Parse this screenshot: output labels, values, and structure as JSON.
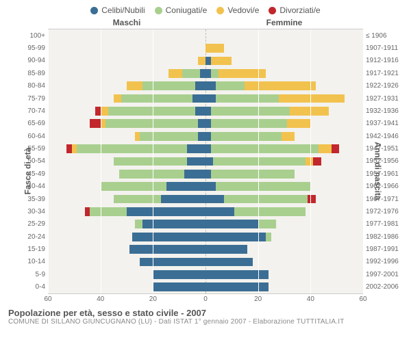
{
  "legend": [
    {
      "label": "Celibi/Nubili",
      "color": "#3b6e94"
    },
    {
      "label": "Coniugati/e",
      "color": "#a9cf8f"
    },
    {
      "label": "Vedovi/e",
      "color": "#f2c24e"
    },
    {
      "label": "Divorziati/e",
      "color": "#c1272d"
    }
  ],
  "headers": {
    "male": "Maschi",
    "female": "Femmine"
  },
  "axis_titles": {
    "left": "Fasce di età",
    "right": "Anni di nascita"
  },
  "xmax": 60,
  "xticks": [
    60,
    40,
    20,
    0,
    20,
    40,
    60
  ],
  "colors": {
    "single": "#3b6e94",
    "married": "#a9cf8f",
    "widowed": "#f2c24e",
    "divorced": "#c1272d",
    "plot_bg": "#f3f2ee",
    "grid": "#ffffff"
  },
  "title": "Popolazione per età, sesso e stato civile - 2007",
  "subtitle": "COMUNE DI SILLANO GIUNCUGNANO (LU) - Dati ISTAT 1° gennaio 2007 - Elaborazione TUTTITALIA.IT",
  "rows": [
    {
      "age": "100+",
      "birth": "≤ 1906",
      "m": {
        "single": 0,
        "married": 0,
        "widowed": 0,
        "divorced": 0
      },
      "f": {
        "single": 0,
        "married": 0,
        "widowed": 0,
        "divorced": 0
      }
    },
    {
      "age": "95-99",
      "birth": "1907-1911",
      "m": {
        "single": 0,
        "married": 0,
        "widowed": 0,
        "divorced": 0
      },
      "f": {
        "single": 0,
        "married": 0,
        "widowed": 7,
        "divorced": 0
      }
    },
    {
      "age": "90-94",
      "birth": "1912-1916",
      "m": {
        "single": 0,
        "married": 0,
        "widowed": 3,
        "divorced": 0
      },
      "f": {
        "single": 2,
        "married": 0,
        "widowed": 8,
        "divorced": 0
      }
    },
    {
      "age": "85-89",
      "birth": "1917-1921",
      "m": {
        "single": 2,
        "married": 7,
        "widowed": 5,
        "divorced": 0
      },
      "f": {
        "single": 2,
        "married": 3,
        "widowed": 18,
        "divorced": 0
      }
    },
    {
      "age": "80-84",
      "birth": "1922-1926",
      "m": {
        "single": 4,
        "married": 20,
        "widowed": 6,
        "divorced": 0
      },
      "f": {
        "single": 4,
        "married": 11,
        "widowed": 27,
        "divorced": 0
      }
    },
    {
      "age": "75-79",
      "birth": "1927-1931",
      "m": {
        "single": 5,
        "married": 27,
        "widowed": 3,
        "divorced": 0
      },
      "f": {
        "single": 4,
        "married": 24,
        "widowed": 25,
        "divorced": 0
      }
    },
    {
      "age": "70-74",
      "birth": "1932-1936",
      "m": {
        "single": 4,
        "married": 33,
        "widowed": 3,
        "divorced": 2
      },
      "f": {
        "single": 2,
        "married": 30,
        "widowed": 15,
        "divorced": 0
      }
    },
    {
      "age": "65-69",
      "birth": "1937-1941",
      "m": {
        "single": 3,
        "married": 35,
        "widowed": 2,
        "divorced": 4
      },
      "f": {
        "single": 2,
        "married": 29,
        "widowed": 9,
        "divorced": 0
      }
    },
    {
      "age": "60-64",
      "birth": "1942-1946",
      "m": {
        "single": 3,
        "married": 22,
        "widowed": 2,
        "divorced": 0
      },
      "f": {
        "single": 2,
        "married": 27,
        "widowed": 5,
        "divorced": 0
      }
    },
    {
      "age": "55-59",
      "birth": "1947-1951",
      "m": {
        "single": 7,
        "married": 42,
        "widowed": 2,
        "divorced": 2
      },
      "f": {
        "single": 2,
        "married": 41,
        "widowed": 5,
        "divorced": 3
      }
    },
    {
      "age": "50-54",
      "birth": "1952-1956",
      "m": {
        "single": 7,
        "married": 28,
        "widowed": 0,
        "divorced": 0
      },
      "f": {
        "single": 3,
        "married": 35,
        "widowed": 3,
        "divorced": 3
      }
    },
    {
      "age": "45-49",
      "birth": "1957-1961",
      "m": {
        "single": 8,
        "married": 25,
        "widowed": 0,
        "divorced": 0
      },
      "f": {
        "single": 2,
        "married": 32,
        "widowed": 0,
        "divorced": 0
      }
    },
    {
      "age": "40-44",
      "birth": "1962-1966",
      "m": {
        "single": 15,
        "married": 25,
        "widowed": 0,
        "divorced": 0
      },
      "f": {
        "single": 4,
        "married": 36,
        "widowed": 0,
        "divorced": 0
      }
    },
    {
      "age": "35-39",
      "birth": "1967-1971",
      "m": {
        "single": 17,
        "married": 18,
        "widowed": 0,
        "divorced": 0
      },
      "f": {
        "single": 7,
        "married": 32,
        "widowed": 0,
        "divorced": 3
      }
    },
    {
      "age": "30-34",
      "birth": "1972-1976",
      "m": {
        "single": 30,
        "married": 14,
        "widowed": 0,
        "divorced": 2
      },
      "f": {
        "single": 11,
        "married": 27,
        "widowed": 0,
        "divorced": 0
      }
    },
    {
      "age": "25-29",
      "birth": "1977-1981",
      "m": {
        "single": 24,
        "married": 3,
        "widowed": 0,
        "divorced": 0
      },
      "f": {
        "single": 20,
        "married": 7,
        "widowed": 0,
        "divorced": 0
      }
    },
    {
      "age": "20-24",
      "birth": "1982-1986",
      "m": {
        "single": 28,
        "married": 0,
        "widowed": 0,
        "divorced": 0
      },
      "f": {
        "single": 23,
        "married": 2,
        "widowed": 0,
        "divorced": 0
      }
    },
    {
      "age": "15-19",
      "birth": "1987-1991",
      "m": {
        "single": 29,
        "married": 0,
        "widowed": 0,
        "divorced": 0
      },
      "f": {
        "single": 16,
        "married": 0,
        "widowed": 0,
        "divorced": 0
      }
    },
    {
      "age": "10-14",
      "birth": "1992-1996",
      "m": {
        "single": 25,
        "married": 0,
        "widowed": 0,
        "divorced": 0
      },
      "f": {
        "single": 18,
        "married": 0,
        "widowed": 0,
        "divorced": 0
      }
    },
    {
      "age": "5-9",
      "birth": "1997-2001",
      "m": {
        "single": 20,
        "married": 0,
        "widowed": 0,
        "divorced": 0
      },
      "f": {
        "single": 24,
        "married": 0,
        "widowed": 0,
        "divorced": 0
      }
    },
    {
      "age": "0-4",
      "birth": "2002-2006",
      "m": {
        "single": 20,
        "married": 0,
        "widowed": 0,
        "divorced": 0
      },
      "f": {
        "single": 24,
        "married": 0,
        "widowed": 0,
        "divorced": 0
      }
    }
  ]
}
